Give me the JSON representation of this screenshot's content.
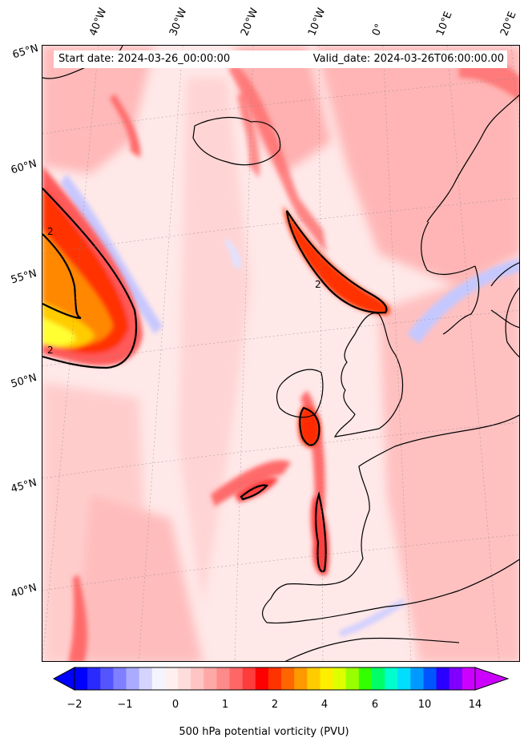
{
  "header": {
    "start": "Start date: 2024-03-26_00:00:00",
    "valid": "Valid_date: 2024-03-26T06:00:00.00"
  },
  "lon_labels": [
    "40°W",
    "30°W",
    "20°W",
    "10°W",
    "0°",
    "10°E",
    "20°E"
  ],
  "lat_labels": [
    "65°N",
    "60°N",
    "55°N",
    "50°N",
    "45°N",
    "40°N"
  ],
  "contour_label": "2",
  "colorbar": {
    "ticks": [
      "−2",
      "−1",
      "0",
      "1",
      "2",
      "4",
      "6",
      "10",
      "14"
    ],
    "label": "500 hPa potential vorticity (PVU)",
    "colors": [
      "#0000ff",
      "#2a2aff",
      "#5555ff",
      "#7f7fff",
      "#aaaaff",
      "#d4d4ff",
      "#f4f4ff",
      "#fff0f0",
      "#ffdcdc",
      "#ffc4c4",
      "#ffa8a8",
      "#ff8a8a",
      "#ff6666",
      "#ff3c3c",
      "#ff0000",
      "#ff3300",
      "#ff6600",
      "#ff9900",
      "#ffcc00",
      "#ffee00",
      "#ddff00",
      "#99ff00",
      "#33ff00",
      "#00ff66",
      "#00ffcc",
      "#00ddff",
      "#0099ff",
      "#0055ff",
      "#2a00ff",
      "#7f00ff",
      "#cc00ff"
    ]
  }
}
